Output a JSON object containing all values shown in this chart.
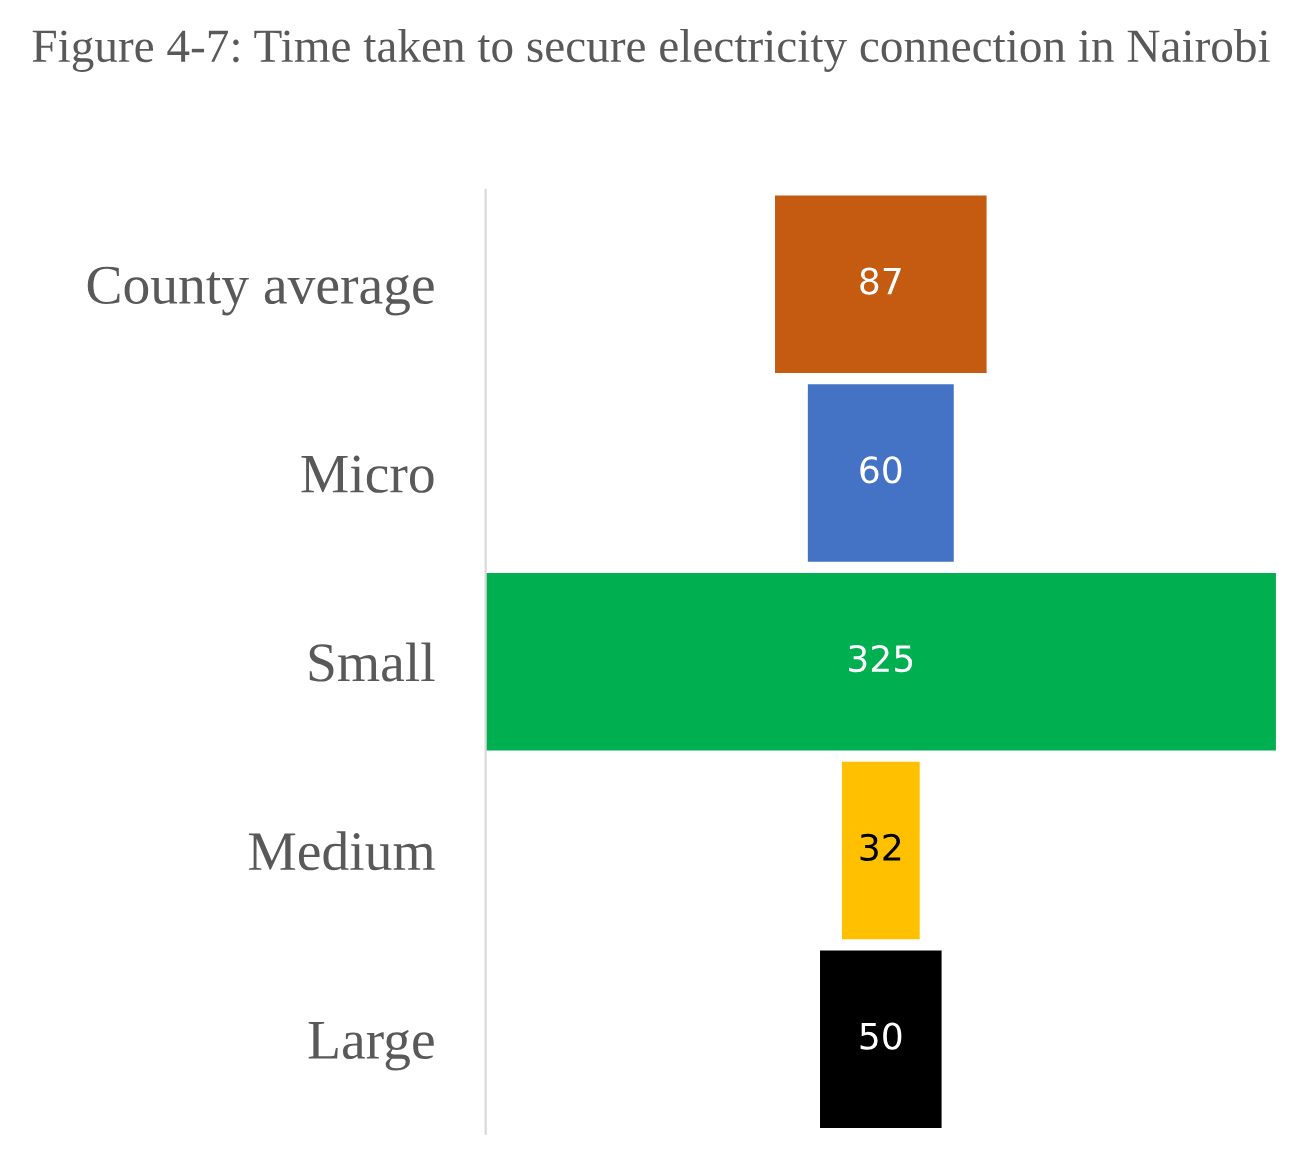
{
  "chart_data": {
    "type": "other",
    "title": "Figure 4-7: Time taken to secure electricity connection in Nairobi",
    "categories": [
      "County average",
      "Micro",
      "Small",
      "Medium",
      "Large"
    ],
    "values": [
      87,
      60,
      325,
      32,
      50
    ],
    "colors": [
      "#c55a11",
      "#4472c4",
      "#00b050",
      "#ffc000",
      "#000000"
    ],
    "data_labels": true
  }
}
